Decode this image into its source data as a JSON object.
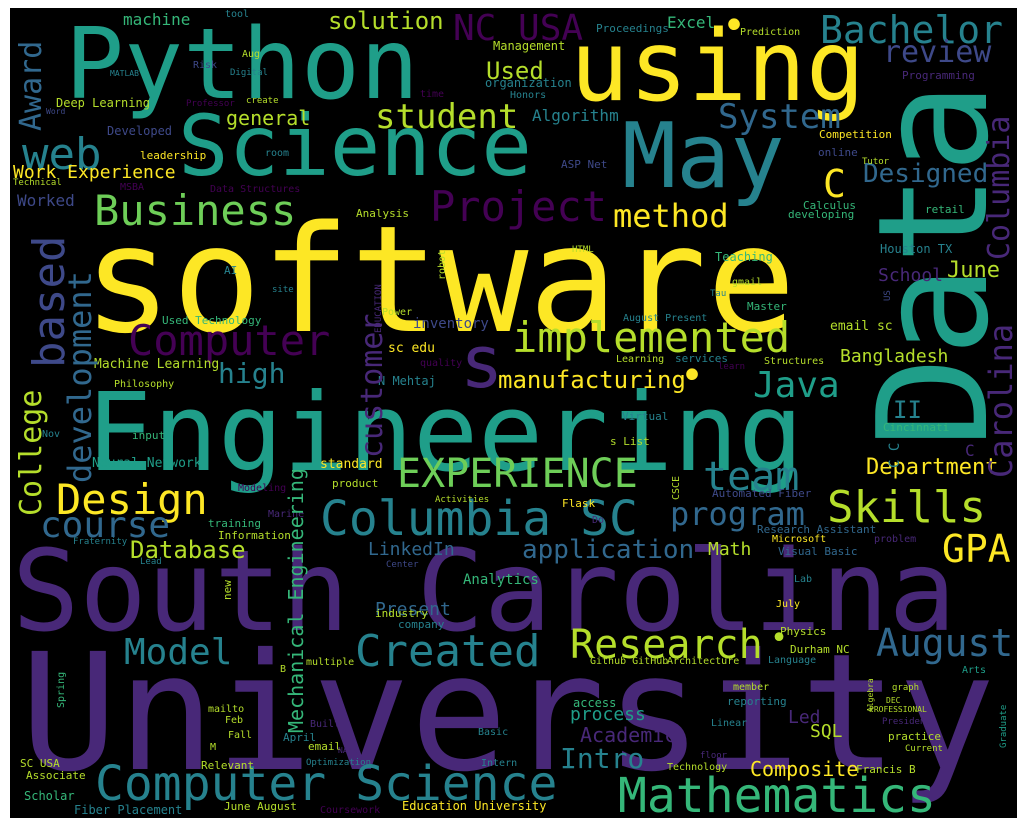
{
  "palette": {
    "yellow": "#fde725",
    "lime": "#b5de2b",
    "green": "#6ece58",
    "mint": "#35b779",
    "teal": "#1f9e89",
    "cyan": "#26828e",
    "blue": "#31688e",
    "indigo": "#3e4989",
    "violet": "#482878",
    "purple": "#440154",
    "background": "#000000"
  },
  "words": {
    "software": "software",
    "university": "University",
    "south_carolina": "South Carolina",
    "engineering": "Engineering",
    "data": "Data",
    "python": "Python",
    "using": "using",
    "science": "Science",
    "may": "May",
    "computer_science": "Computer Science",
    "mathematics": "Mathematics",
    "columbia_sc": "Columbia SC",
    "experience": "EXPERIENCE",
    "design": "Design",
    "skills": "Skills",
    "implemented": "implemented",
    "research": "Research",
    "created": "Created",
    "business": "Business",
    "computer": "Computer",
    "web": "web",
    "project": "Project",
    "s": "s",
    "bachelor": "Bachelor",
    "nc_usa": "NC USA",
    "student": "student",
    "system": "System",
    "review": "review",
    "method": "method",
    "designed": "Designed",
    "c": "C",
    "java": "Java",
    "team": "team",
    "program": "program",
    "gpa": "GPA",
    "august": "August",
    "model": "Model",
    "course": "course",
    "application": "application",
    "database": "Database",
    "intro": "Intro",
    "academic": "Academic",
    "composite": "Composite",
    "department": "Department",
    "high": "high",
    "manufacturing": "manufacturing",
    "solution": "solution",
    "used": "Used",
    "june": "June",
    "bangladesh": "Bangladesh",
    "ii": "II",
    "c_small": "C",
    "school": "School",
    "math": "Math",
    "linkedin": "LinkedIn",
    "present": "Present",
    "process": "process",
    "led": "Led",
    "sql": "SQL",
    "general": "general",
    "work_experience": "Work Experience",
    "worked": "Worked",
    "algorithm": "Algorithm",
    "analytics": "Analytics",
    "machine": "machine",
    "excel": "Excel",
    "management": "Management",
    "organization": "organization",
    "deep_learning": "Deep Learning",
    "developed": "Developed",
    "leadership": "leadership",
    "technical": "Technical",
    "msba": "MSBA",
    "data_structures": "Data Structures",
    "competition": "Competition",
    "online": "online",
    "tutor": "Tutor",
    "calculus": "Calculus",
    "developing": "developing",
    "retail": "retail",
    "analysis": "Analysis",
    "houston_tx": "Houston TX",
    "teaching": "Teaching",
    "gmail": "gmail",
    "tau": "Tau",
    "master": "Master",
    "html": "HTML",
    "robot": "robot",
    "ai": "AI",
    "site": "site",
    "used_technology": "Used Technology",
    "power": "Power",
    "inventory": "inventory",
    "email_sc": "email sc",
    "august_present": "August Present",
    "sc_edu": "sc edu",
    "quality": "quality",
    "learning": "Learning",
    "services": "services",
    "learn": "learn",
    "structures": "Structures",
    "n_mehtaj": "N Mehtaj",
    "machine_learning": "Machine Learning",
    "philosophy": "Philosophy",
    "virtual": "Virtual",
    "s_list": "s List",
    "cincinnati": "Cincinnati",
    "neural_network": "Neural Network",
    "input": "input",
    "nov": "Nov",
    "standard": "standard",
    "product": "product",
    "modeling": "Modeling",
    "activities": "Activities",
    "flask": "Flask",
    "automated_fiber": "Automated Fiber",
    "research_assistant": "Research Assistant",
    "marine": "Marine",
    "training": "training",
    "information": "Information",
    "fraternity": "Fraternity",
    "microsoft": "Microsoft",
    "problem": "problem",
    "visual_basic": "Visual Basic",
    "lead": "Lead",
    "center": "Center",
    "new": "new",
    "industry": "industry",
    "company": "company",
    "july": "July",
    "lab": "Lab",
    "physics": "Physics",
    "durham_nc": "Durham NC",
    "language": "Language",
    "github": "Github GitHub",
    "architecture": "Architecture",
    "multiple": "multiple",
    "member": "member",
    "access": "access",
    "reporting": "reporting",
    "arts": "Arts",
    "graph": "graph",
    "dec": "DEC",
    "professional": "PROFESSIONAL",
    "president": "President",
    "practice": "practice",
    "current": "Current",
    "graduate": "Graduate",
    "linear": "Linear",
    "basic": "Basic",
    "floor": "floor",
    "technology": "Technology",
    "francis_b": "Francis B",
    "intern": "Intern",
    "optimization": "Optimization",
    "relevant": "Relevant",
    "email": "email",
    "april": "April",
    "fall": "Fall",
    "feb": "Feb",
    "mailto": "mailto",
    "built": "Built",
    "spring": "Spring",
    "scholar": "Scholar",
    "associate": "Associate",
    "sc_usa": "SC USA",
    "fiber_placement": "Fiber Placement",
    "june_august": "June August",
    "coursework": "Coursework",
    "education_university": "Education University",
    "m": "M",
    "b": "B",
    "name": "NAME",
    "tool": "tool",
    "proceedings": "Proceedings",
    "prediction": "Prediction",
    "programming": "Programming",
    "matlab": "MATLAB",
    "risk": "Risk",
    "digital": "Digital",
    "aug": "Aug",
    "honors": "Honors",
    "time": "time",
    "professor": "Professor",
    "create": "create",
    "word": "Word",
    "room": "room",
    "asp_net": "ASP Net",
    "award": "Award",
    "based": "based",
    "development": "development",
    "college": "College",
    "customer": "customer",
    "carolina": "Carolina",
    "columbia": "Columbia",
    "mechanical_engineering": "Mechanical Engineering",
    "education": "EDUCATION",
    "csce": "CSCE",
    "algebra": "Algebra",
    "us": "US",
    "c_c": "C C",
    "do": "Do"
  }
}
